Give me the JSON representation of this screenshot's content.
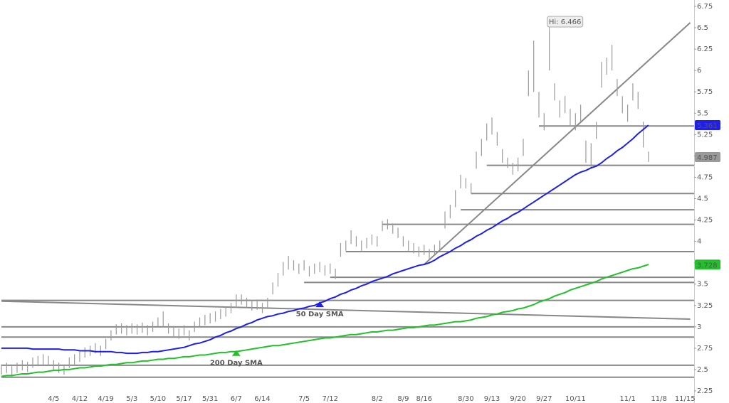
{
  "chart_data": {
    "type": "ohlc",
    "categories": [
      null,
      null,
      null,
      null,
      null,
      null,
      null,
      null,
      null,
      null,
      "4/5",
      null,
      null,
      null,
      null,
      "4/12",
      null,
      null,
      null,
      null,
      "4/19",
      null,
      null,
      null,
      null,
      "5/3",
      null,
      null,
      null,
      null,
      "5/10",
      null,
      null,
      null,
      null,
      "5/17",
      null,
      null,
      null,
      null,
      "5/31",
      null,
      null,
      null,
      null,
      "6/7",
      null,
      null,
      null,
      null,
      "6/14",
      null,
      null,
      null,
      null,
      null,
      null,
      null,
      "7/5",
      null,
      null,
      null,
      null,
      "7/12",
      null,
      null,
      null,
      null,
      null,
      null,
      null,
      null,
      "8/2",
      null,
      null,
      null,
      null,
      "8/9",
      null,
      null,
      null,
      "8/16",
      null,
      null,
      null,
      null,
      null,
      null,
      null,
      "8/30",
      null,
      null,
      null,
      null,
      "9/13",
      null,
      null,
      null,
      null,
      "9/20",
      null,
      null,
      null,
      null,
      "9/27",
      null,
      null,
      null,
      null,
      null,
      "10/11",
      null,
      null,
      null,
      null,
      null,
      null,
      null,
      null,
      null,
      "11/1",
      null,
      null,
      null,
      null,
      null,
      "11/8",
      null,
      null,
      null,
      null,
      "11/15",
      null
    ],
    "highs": [
      2.56,
      2.58,
      2.54,
      2.58,
      2.61,
      2.59,
      2.64,
      2.66,
      2.68,
      2.66,
      2.61,
      2.58,
      2.56,
      2.64,
      2.68,
      2.71,
      2.76,
      2.78,
      2.81,
      2.78,
      2.86,
      2.96,
      3.03,
      3.04,
      3.02,
      3.04,
      3.03,
      3.05,
      3.02,
      3.06,
      3.11,
      3.18,
      3.04,
      3.01,
      2.98,
      3.02,
      2.96,
      3.06,
      3.11,
      3.14,
      3.16,
      3.18,
      3.21,
      3.24,
      3.28,
      3.38,
      3.38,
      3.34,
      3.31,
      3.32,
      3.28,
      3.34,
      3.52,
      3.63,
      3.76,
      3.83,
      3.78,
      3.74,
      3.78,
      3.71,
      3.74,
      3.76,
      3.72,
      3.74,
      3.68,
      3.98,
      4.01,
      4.13,
      4.06,
      4.01,
      4.04,
      4.08,
      4.06,
      4.24,
      4.26,
      4.21,
      4.16,
      4.06,
      4.01,
      3.98,
      3.94,
      3.96,
      3.91,
      3.96,
      4.01,
      4.35,
      4.43,
      4.6,
      4.78,
      4.74,
      4.68,
      5.05,
      5.2,
      5.38,
      5.45,
      5.28,
      5.08,
      4.98,
      4.92,
      4.98,
      5.2,
      6.0,
      6.35,
      5.75,
      5.5,
      6.466,
      5.85,
      5.65,
      5.7,
      5.55,
      5.5,
      5.6,
      5.18,
      5.15,
      5.4,
      6.1,
      6.15,
      6.3,
      5.9,
      5.7,
      5.6,
      5.85,
      5.75,
      5.4,
      5.05,
      null,
      null,
      null,
      null,
      null,
      null,
      null,
      null
    ],
    "lows": [
      2.44,
      2.46,
      2.42,
      2.46,
      2.49,
      2.47,
      2.52,
      2.54,
      2.56,
      2.54,
      2.49,
      2.46,
      2.44,
      2.52,
      2.56,
      2.59,
      2.64,
      2.66,
      2.69,
      2.66,
      2.74,
      2.84,
      2.91,
      2.92,
      2.9,
      2.92,
      2.91,
      2.93,
      2.9,
      2.94,
      2.99,
      3.0,
      2.92,
      2.89,
      2.86,
      2.9,
      2.84,
      2.94,
      2.99,
      3.02,
      3.04,
      3.06,
      3.09,
      3.12,
      3.16,
      3.22,
      3.26,
      3.22,
      3.19,
      3.2,
      3.16,
      3.22,
      3.38,
      3.47,
      3.6,
      3.67,
      3.66,
      3.62,
      3.66,
      3.59,
      3.62,
      3.64,
      3.6,
      3.62,
      3.56,
      3.82,
      3.89,
      3.97,
      3.94,
      3.89,
      3.92,
      3.96,
      3.94,
      4.12,
      4.14,
      4.09,
      4.04,
      3.94,
      3.89,
      3.86,
      3.82,
      3.84,
      3.79,
      3.84,
      3.89,
      4.15,
      4.27,
      4.4,
      4.62,
      4.62,
      4.56,
      4.85,
      5.0,
      5.18,
      5.25,
      5.12,
      4.92,
      4.86,
      4.78,
      4.82,
      5.0,
      5.7,
      5.75,
      5.45,
      5.3,
      6.0,
      5.65,
      5.45,
      5.5,
      5.35,
      5.3,
      5.4,
      4.92,
      4.85,
      5.2,
      5.8,
      5.95,
      6.0,
      5.7,
      5.5,
      5.4,
      5.65,
      5.55,
      5.1,
      4.93,
      null,
      null,
      null,
      null,
      null,
      null,
      null,
      null
    ],
    "bar_color": "#9a9a9a",
    "series": [
      {
        "name": "50 Day SMA",
        "color": "#1f1fe8",
        "values": [
          2.75,
          2.75,
          2.75,
          2.75,
          2.75,
          2.75,
          2.74,
          2.74,
          2.74,
          2.74,
          2.74,
          2.74,
          2.73,
          2.73,
          2.73,
          2.72,
          2.72,
          2.72,
          2.71,
          2.71,
          2.71,
          2.71,
          2.7,
          2.7,
          2.69,
          2.69,
          2.69,
          2.7,
          2.7,
          2.71,
          2.71,
          2.72,
          2.73,
          2.74,
          2.75,
          2.76,
          2.78,
          2.8,
          2.81,
          2.83,
          2.85,
          2.88,
          2.9,
          2.93,
          2.95,
          2.98,
          3.0,
          3.03,
          3.05,
          3.08,
          3.1,
          3.12,
          3.13,
          3.15,
          3.16,
          3.18,
          3.19,
          3.21,
          3.22,
          3.24,
          3.25,
          3.28,
          3.3,
          3.33,
          3.35,
          3.38,
          3.4,
          3.43,
          3.45,
          3.48,
          3.5,
          3.53,
          3.55,
          3.57,
          3.59,
          3.62,
          3.64,
          3.66,
          3.68,
          3.7,
          3.72,
          3.73,
          3.75,
          3.78,
          3.82,
          3.85,
          3.88,
          3.92,
          3.95,
          3.99,
          4.02,
          4.06,
          4.09,
          4.13,
          4.16,
          4.2,
          4.24,
          4.27,
          4.31,
          4.34,
          4.38,
          4.42,
          4.46,
          4.5,
          4.54,
          4.58,
          4.62,
          4.66,
          4.7,
          4.74,
          4.78,
          4.81,
          4.83,
          4.86,
          4.88,
          4.92,
          4.97,
          5.01,
          5.06,
          5.1,
          5.15,
          5.2,
          5.26,
          5.31,
          5.36,
          null,
          null,
          null,
          null,
          null,
          null,
          null,
          null
        ]
      },
      {
        "name": "200 Day SMA",
        "color": "#22c02a",
        "values": [
          2.42,
          2.43,
          2.43,
          2.44,
          2.45,
          2.45,
          2.46,
          2.47,
          2.47,
          2.48,
          2.49,
          2.49,
          2.5,
          2.5,
          2.51,
          2.52,
          2.52,
          2.53,
          2.54,
          2.54,
          2.55,
          2.56,
          2.56,
          2.57,
          2.58,
          2.58,
          2.59,
          2.6,
          2.6,
          2.61,
          2.62,
          2.62,
          2.63,
          2.63,
          2.64,
          2.65,
          2.65,
          2.66,
          2.67,
          2.67,
          2.68,
          2.69,
          2.7,
          2.7,
          2.71,
          2.71,
          2.72,
          2.73,
          2.74,
          2.75,
          2.76,
          2.77,
          2.78,
          2.78,
          2.79,
          2.8,
          2.81,
          2.82,
          2.83,
          2.84,
          2.85,
          2.86,
          2.87,
          2.87,
          2.88,
          2.89,
          2.9,
          2.91,
          2.91,
          2.92,
          2.93,
          2.94,
          2.94,
          2.95,
          2.96,
          2.96,
          2.97,
          2.98,
          2.99,
          2.99,
          3.0,
          3.01,
          3.02,
          3.02,
          3.03,
          3.04,
          3.05,
          3.06,
          3.06,
          3.07,
          3.08,
          3.1,
          3.11,
          3.12,
          3.14,
          3.15,
          3.17,
          3.18,
          3.19,
          3.21,
          3.22,
          3.24,
          3.26,
          3.29,
          3.31,
          3.33,
          3.36,
          3.38,
          3.4,
          3.43,
          3.45,
          3.47,
          3.49,
          3.51,
          3.53,
          3.56,
          3.58,
          3.6,
          3.62,
          3.64,
          3.66,
          3.68,
          3.69,
          3.71,
          3.73,
          null,
          null,
          null,
          null,
          null,
          null,
          null,
          null
        ]
      }
    ],
    "levels": [
      {
        "value": 5.35,
        "from": 103
      },
      {
        "value": 4.89,
        "from": 93
      },
      {
        "value": 4.56,
        "from": 90
      },
      {
        "value": 4.37,
        "from": 88
      },
      {
        "value": 4.2,
        "from": 73
      },
      {
        "value": 3.88,
        "from": 66
      },
      {
        "value": 3.58,
        "from": 63
      },
      {
        "value": 3.52,
        "from": 58
      },
      {
        "value": 3.31,
        "from": 0
      },
      {
        "value": 3.0,
        "from": 0
      },
      {
        "value": 2.88,
        "from": 0
      },
      {
        "value": 2.55,
        "from": 0
      },
      {
        "value": 2.41,
        "from": 0
      }
    ],
    "trendlines": [
      {
        "from": [
          0,
          3.3
        ],
        "to": [
          132,
          3.09
        ]
      },
      {
        "from": [
          81,
          3.73
        ],
        "to": [
          132,
          6.56
        ]
      }
    ],
    "line_color": "#888888",
    "annotation": "Hi: 6.466",
    "price_tags": [
      {
        "value": 5.361,
        "color": "#1f1fe8"
      },
      {
        "value": 4.987,
        "color": "#9a9a9a"
      },
      {
        "value": 3.728,
        "color": "#22c02a"
      }
    ],
    "ylim": [
      2.25,
      6.75
    ],
    "yticks": [
      2.25,
      2.5,
      2.75,
      3,
      3.25,
      3.5,
      3.75,
      4,
      4.25,
      4.5,
      4.75,
      5,
      5.25,
      5.5,
      5.75,
      6,
      6.25,
      6.5,
      6.75
    ]
  }
}
